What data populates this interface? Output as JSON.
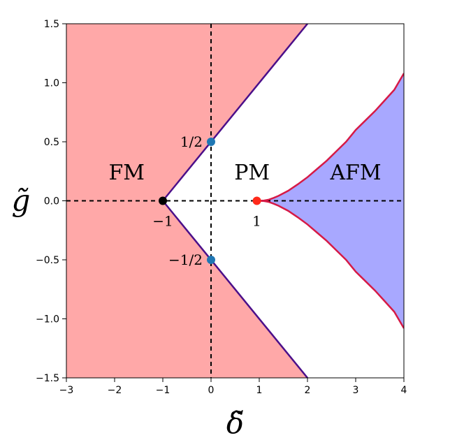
{
  "chart_data": {
    "type": "area",
    "title": "",
    "xlabel": "δ̃",
    "ylabel": "g̃",
    "xlim": [
      -3,
      4
    ],
    "ylim": [
      -1.5,
      1.5
    ],
    "xticks": [
      -3,
      -2,
      -1,
      0,
      1,
      2,
      3,
      4
    ],
    "xtick_labels": [
      "−3",
      "−2",
      "−1",
      "0",
      "1",
      "2",
      "3",
      "4"
    ],
    "yticks": [
      -1.5,
      -1.0,
      -0.5,
      0.0,
      0.5,
      1.0,
      1.5
    ],
    "ytick_labels": [
      "−1.5",
      "−1.0",
      "−0.5",
      "0.0",
      "0.5",
      "1.0",
      "1.5"
    ],
    "grid": false,
    "regions": [
      {
        "label": "FM",
        "color": "#ffa8a8",
        "boundary": "g = ±(1+δ)/2",
        "label_at": [
          -1.75,
          0.18
        ]
      },
      {
        "label": "PM",
        "color": "#ffffff",
        "label_at": [
          0.85,
          0.18
        ]
      },
      {
        "label": "AFM",
        "color": "#a8a8ff",
        "label_at": [
          3.0,
          0.18
        ]
      }
    ],
    "boundaries": [
      {
        "name": "FM–PM boundary",
        "color": "#4b0f8a",
        "x": [
          -1,
          2
        ],
        "y_upper": [
          0,
          1.5
        ],
        "y_lower": [
          0,
          -1.5
        ]
      },
      {
        "name": "PM–AFM boundary",
        "color": "#d61a46",
        "x": [
          1.0,
          1.1,
          1.2,
          1.3,
          1.4,
          1.6,
          1.8,
          2.0,
          2.2,
          2.4,
          2.6,
          2.8,
          3.0,
          3.2,
          3.4,
          3.6,
          3.8,
          4.0
        ],
        "y": [
          0.0,
          0.002,
          0.01,
          0.025,
          0.042,
          0.085,
          0.14,
          0.2,
          0.27,
          0.34,
          0.42,
          0.5,
          0.6,
          0.68,
          0.76,
          0.85,
          0.94,
          1.08
        ]
      }
    ],
    "dashed_lines": [
      {
        "orientation": "vertical",
        "x": 0
      },
      {
        "orientation": "horizontal",
        "y": 0
      }
    ],
    "points": [
      {
        "x": -1,
        "y": 0,
        "color": "#000000",
        "label": "−1"
      },
      {
        "x": 0,
        "y": 0.5,
        "color": "#1f77b4",
        "label": "1/2"
      },
      {
        "x": 0,
        "y": -0.5,
        "color": "#1f77b4",
        "label": "−1/2"
      },
      {
        "x": 0.95,
        "y": 0,
        "color": "#ff2a1a",
        "label": "1"
      }
    ]
  }
}
